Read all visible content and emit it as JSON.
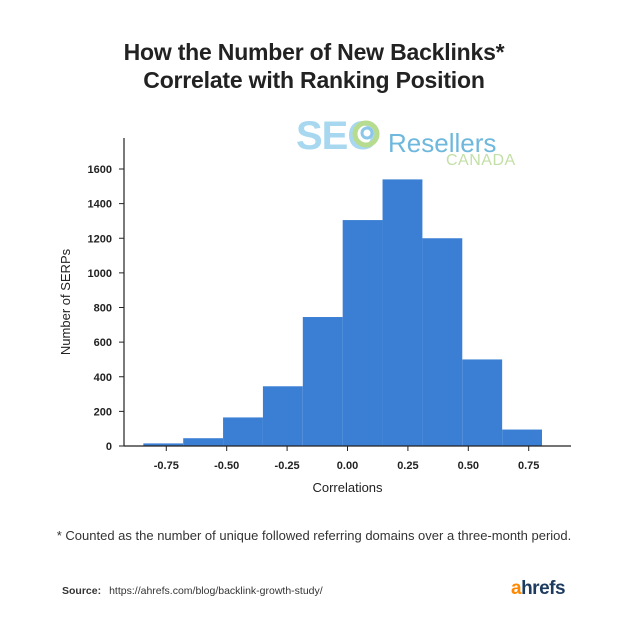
{
  "header": {
    "title_line1": "How the Number of New Backlinks*",
    "title_line2": "Correlate with Ranking Position"
  },
  "watermark": {
    "seo": "SEO",
    "resellers": "Resellers",
    "canada": "CANADA"
  },
  "footnote": "* Counted as the number of unique followed referring domains over a three-month period.",
  "source": {
    "label": "Source:",
    "url": "https://ahrefs.com/blog/backlink-growth-study/"
  },
  "brand": {
    "first": "a",
    "rest": "hrefs"
  },
  "colors": {
    "bar": "#3b7fd4",
    "axis": "#222222",
    "brand_orange": "#ff8800",
    "brand_navy": "#1d3b5f"
  },
  "chart_data": {
    "type": "bar",
    "xlabel": "Correlations",
    "ylabel": "Number of SERPs",
    "xlim": [
      -0.925,
      0.925
    ],
    "ylim": [
      0,
      1700
    ],
    "bin_width": 0.165,
    "bin_starts": [
      -0.845,
      -0.68,
      -0.515,
      -0.35,
      -0.185,
      -0.02,
      0.145,
      0.31,
      0.475,
      0.64
    ],
    "values": [
      15,
      45,
      165,
      345,
      745,
      1305,
      1540,
      1200,
      500,
      95
    ],
    "x_ticks": [
      -0.75,
      -0.5,
      -0.25,
      0.0,
      0.25,
      0.5,
      0.75
    ],
    "x_tick_labels": [
      "-0.75",
      "-0.50",
      "-0.25",
      "0.00",
      "0.25",
      "0.50",
      "0.75"
    ],
    "y_ticks": [
      0,
      200,
      400,
      600,
      800,
      1000,
      1200,
      1400,
      1600
    ],
    "y_tick_labels": [
      "0",
      "200",
      "400",
      "600",
      "800",
      "1000",
      "1200",
      "1400",
      "1600"
    ],
    "grid": false,
    "legend": "none"
  }
}
